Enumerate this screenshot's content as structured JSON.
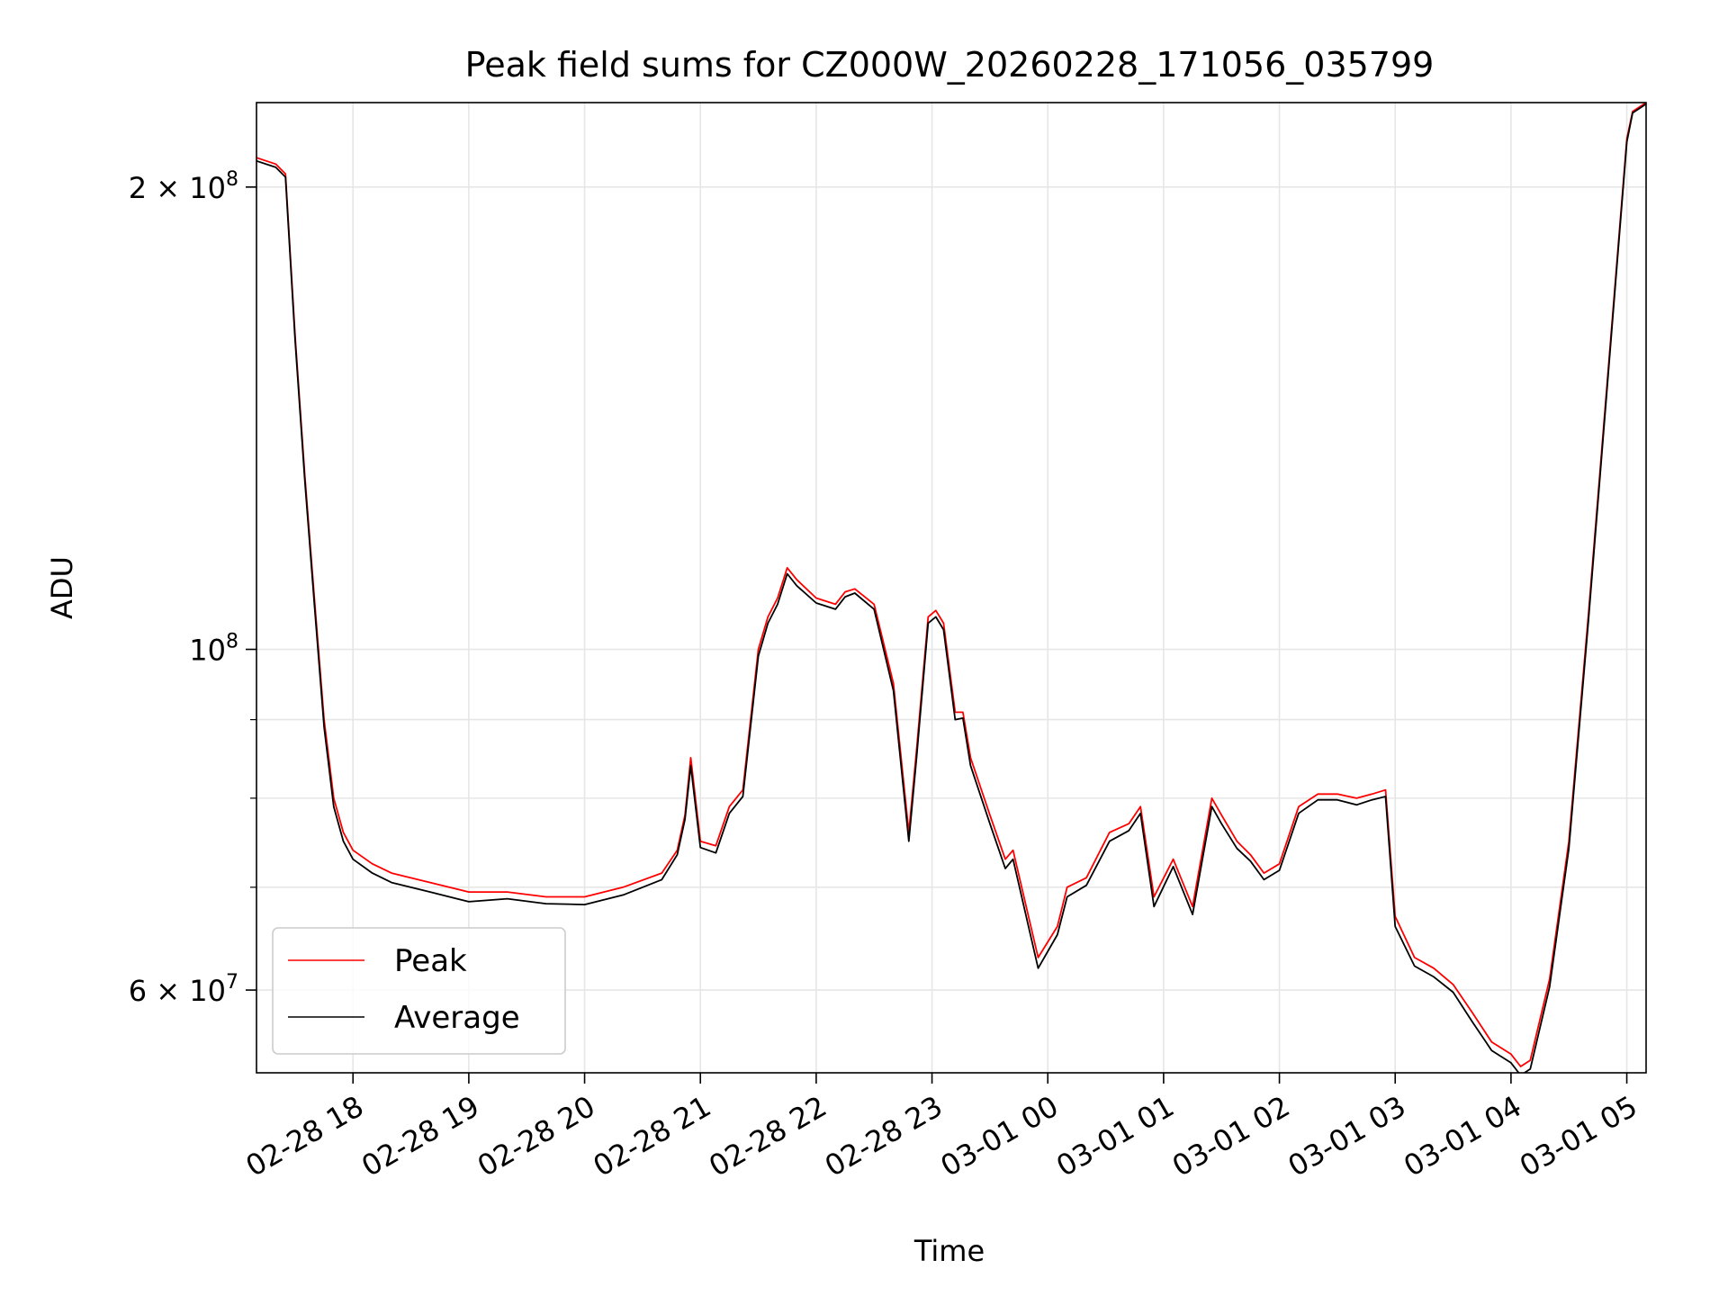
{
  "chart_data": {
    "type": "line",
    "title": "Peak field sums for CZ000W_20260228_171056_035799",
    "xlabel": "Time",
    "ylabel": "ADU",
    "y_scale": "log",
    "grid": true,
    "legend_position": "lower-left",
    "x_range": [
      "2026-02-28 17:10",
      "2026-03-01 05:10"
    ],
    "y_range": [
      53000000,
      227000000
    ],
    "x_ticks": [
      {
        "value": "2026-02-28 18:00",
        "label": "02-28 18"
      },
      {
        "value": "2026-02-28 19:00",
        "label": "02-28 19"
      },
      {
        "value": "2026-02-28 20:00",
        "label": "02-28 20"
      },
      {
        "value": "2026-02-28 21:00",
        "label": "02-28 21"
      },
      {
        "value": "2026-02-28 22:00",
        "label": "02-28 22"
      },
      {
        "value": "2026-02-28 23:00",
        "label": "02-28 23"
      },
      {
        "value": "2026-03-01 00:00",
        "label": "03-01 00"
      },
      {
        "value": "2026-03-01 01:00",
        "label": "03-01 01"
      },
      {
        "value": "2026-03-01 02:00",
        "label": "03-01 02"
      },
      {
        "value": "2026-03-01 03:00",
        "label": "03-01 03"
      },
      {
        "value": "2026-03-01 04:00",
        "label": "03-01 04"
      },
      {
        "value": "2026-03-01 05:00",
        "label": "03-01 05"
      }
    ],
    "y_ticks": [
      {
        "value": 60000000,
        "label": "6 × 10",
        "exp": "7"
      },
      {
        "value": 100000000,
        "label": "10",
        "exp": "8"
      },
      {
        "value": 200000000,
        "label": "2 × 10",
        "exp": "8"
      }
    ],
    "y_minor_ticks": [
      70000000,
      80000000,
      90000000
    ],
    "series": [
      {
        "name": "Peak",
        "color": "#ff0000",
        "x": [
          "2026-02-28 17:10",
          "2026-02-28 17:20",
          "2026-02-28 17:25",
          "2026-02-28 17:30",
          "2026-02-28 17:35",
          "2026-02-28 17:40",
          "2026-02-28 17:45",
          "2026-02-28 17:50",
          "2026-02-28 17:55",
          "2026-02-28 18:00",
          "2026-02-28 18:10",
          "2026-02-28 18:20",
          "2026-02-28 18:40",
          "2026-02-28 19:00",
          "2026-02-28 19:20",
          "2026-02-28 19:40",
          "2026-02-28 20:00",
          "2026-02-28 20:20",
          "2026-02-28 20:40",
          "2026-02-28 20:48",
          "2026-02-28 20:52",
          "2026-02-28 20:55",
          "2026-02-28 21:00",
          "2026-02-28 21:08",
          "2026-02-28 21:15",
          "2026-02-28 21:22",
          "2026-02-28 21:30",
          "2026-02-28 21:35",
          "2026-02-28 21:40",
          "2026-02-28 21:45",
          "2026-02-28 21:50",
          "2026-02-28 22:00",
          "2026-02-28 22:10",
          "2026-02-28 22:15",
          "2026-02-28 22:20",
          "2026-02-28 22:30",
          "2026-02-28 22:40",
          "2026-02-28 22:48",
          "2026-02-28 22:52",
          "2026-02-28 22:58",
          "2026-02-28 23:02",
          "2026-02-28 23:06",
          "2026-02-28 23:12",
          "2026-02-28 23:16",
          "2026-02-28 23:20",
          "2026-02-28 23:30",
          "2026-02-28 23:38",
          "2026-02-28 23:42",
          "2026-02-28 23:50",
          "2026-02-28 23:55",
          "2026-03-01 00:05",
          "2026-03-01 00:10",
          "2026-03-01 00:20",
          "2026-03-01 00:32",
          "2026-03-01 00:42",
          "2026-03-01 00:48",
          "2026-03-01 00:55",
          "2026-03-01 01:05",
          "2026-03-01 01:15",
          "2026-03-01 01:25",
          "2026-03-01 01:30",
          "2026-03-01 01:38",
          "2026-03-01 01:45",
          "2026-03-01 01:52",
          "2026-03-01 02:00",
          "2026-03-01 02:10",
          "2026-03-01 02:20",
          "2026-03-01 02:30",
          "2026-03-01 02:40",
          "2026-03-01 02:48",
          "2026-03-01 02:55",
          "2026-03-01 03:00",
          "2026-03-01 03:10",
          "2026-03-01 03:20",
          "2026-03-01 03:30",
          "2026-03-01 03:40",
          "2026-03-01 03:50",
          "2026-03-01 04:00",
          "2026-03-01 04:05",
          "2026-03-01 04:10",
          "2026-03-01 04:20",
          "2026-03-01 04:30",
          "2026-03-01 04:40",
          "2026-03-01 04:50",
          "2026-03-01 05:00",
          "2026-03-01 05:03",
          "2026-03-01 05:10"
        ],
        "values": [
          209000000,
          207000000,
          204000000,
          160000000,
          130000000,
          108000000,
          90000000,
          80000000,
          76000000,
          74000000,
          72500000,
          71500000,
          70500000,
          69500000,
          69500000,
          69000000,
          69000000,
          70000000,
          71500000,
          74000000,
          78000000,
          85000000,
          75000000,
          74500000,
          79000000,
          81000000,
          100000000,
          105000000,
          108000000,
          113000000,
          111000000,
          108000000,
          107000000,
          109000000,
          109500000,
          107000000,
          95000000,
          76000000,
          86000000,
          105000000,
          106000000,
          104000000,
          91000000,
          91000000,
          85000000,
          78000000,
          73000000,
          74000000,
          67000000,
          63000000,
          66000000,
          70000000,
          71000000,
          76000000,
          77000000,
          79000000,
          69000000,
          73000000,
          68000000,
          80000000,
          78000000,
          75000000,
          73500000,
          71500000,
          72500000,
          79000000,
          80500000,
          80500000,
          80000000,
          80500000,
          81000000,
          67000000,
          63000000,
          62000000,
          60500000,
          58000000,
          55500000,
          54500000,
          53500000,
          54000000,
          61000000,
          75000000,
          105000000,
          150000000,
          215000000,
          224000000,
          227000000
        ]
      },
      {
        "name": "Average",
        "color": "#000000",
        "x": [
          "2026-02-28 17:10",
          "2026-02-28 17:20",
          "2026-02-28 17:25",
          "2026-02-28 17:30",
          "2026-02-28 17:35",
          "2026-02-28 17:40",
          "2026-02-28 17:45",
          "2026-02-28 17:50",
          "2026-02-28 17:55",
          "2026-02-28 18:00",
          "2026-02-28 18:10",
          "2026-02-28 18:20",
          "2026-02-28 18:40",
          "2026-02-28 19:00",
          "2026-02-28 19:20",
          "2026-02-28 19:40",
          "2026-02-28 20:00",
          "2026-02-28 20:20",
          "2026-02-28 20:40",
          "2026-02-28 20:48",
          "2026-02-28 20:52",
          "2026-02-28 20:55",
          "2026-02-28 21:00",
          "2026-02-28 21:08",
          "2026-02-28 21:15",
          "2026-02-28 21:22",
          "2026-02-28 21:30",
          "2026-02-28 21:35",
          "2026-02-28 21:40",
          "2026-02-28 21:45",
          "2026-02-28 21:50",
          "2026-02-28 22:00",
          "2026-02-28 22:10",
          "2026-02-28 22:15",
          "2026-02-28 22:20",
          "2026-02-28 22:30",
          "2026-02-28 22:40",
          "2026-02-28 22:48",
          "2026-02-28 22:52",
          "2026-02-28 22:58",
          "2026-02-28 23:02",
          "2026-02-28 23:06",
          "2026-02-28 23:12",
          "2026-02-28 23:16",
          "2026-02-28 23:20",
          "2026-02-28 23:30",
          "2026-02-28 23:38",
          "2026-02-28 23:42",
          "2026-02-28 23:50",
          "2026-02-28 23:55",
          "2026-03-01 00:05",
          "2026-03-01 00:10",
          "2026-03-01 00:20",
          "2026-03-01 00:32",
          "2026-03-01 00:42",
          "2026-03-01 00:48",
          "2026-03-01 00:55",
          "2026-03-01 01:05",
          "2026-03-01 01:15",
          "2026-03-01 01:25",
          "2026-03-01 01:30",
          "2026-03-01 01:38",
          "2026-03-01 01:45",
          "2026-03-01 01:52",
          "2026-03-01 02:00",
          "2026-03-01 02:10",
          "2026-03-01 02:20",
          "2026-03-01 02:30",
          "2026-03-01 02:40",
          "2026-03-01 02:48",
          "2026-03-01 02:55",
          "2026-03-01 03:00",
          "2026-03-01 03:10",
          "2026-03-01 03:20",
          "2026-03-01 03:30",
          "2026-03-01 03:40",
          "2026-03-01 03:50",
          "2026-03-01 04:00",
          "2026-03-01 04:05",
          "2026-03-01 04:10",
          "2026-03-01 04:20",
          "2026-03-01 04:30",
          "2026-03-01 04:40",
          "2026-03-01 04:50",
          "2026-03-01 05:00",
          "2026-03-01 05:03",
          "2026-03-01 05:10"
        ],
        "values": [
          208000000,
          206000000,
          203000000,
          159000000,
          129000000,
          107000000,
          89000000,
          79000000,
          75000000,
          73000000,
          71500000,
          70500000,
          69500000,
          68500000,
          68800000,
          68300000,
          68200000,
          69200000,
          70800000,
          73500000,
          77500000,
          84000000,
          74300000,
          73700000,
          78200000,
          80200000,
          99000000,
          104000000,
          107000000,
          112000000,
          110000000,
          107200000,
          106200000,
          108200000,
          108800000,
          106200000,
          94000000,
          75000000,
          85000000,
          104000000,
          105000000,
          103000000,
          90000000,
          90200000,
          84000000,
          77000000,
          72000000,
          73000000,
          66000000,
          62000000,
          65200000,
          69000000,
          70200000,
          75000000,
          76200000,
          78200000,
          68000000,
          72200000,
          67200000,
          79000000,
          77000000,
          74200000,
          72800000,
          70800000,
          71800000,
          78200000,
          79800000,
          79800000,
          79200000,
          79800000,
          80200000,
          66000000,
          62200000,
          61200000,
          59800000,
          57200000,
          54800000,
          53800000,
          52800000,
          53300000,
          60300000,
          74200000,
          104000000,
          149000000,
          214000000,
          223500000,
          226500000
        ]
      }
    ]
  }
}
